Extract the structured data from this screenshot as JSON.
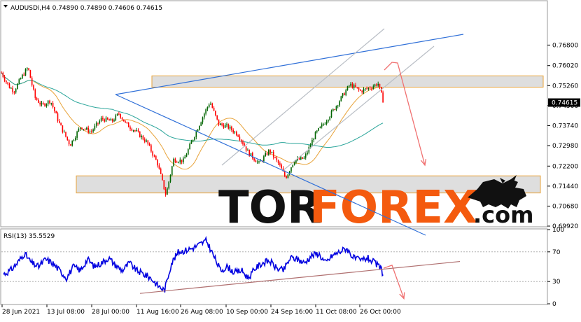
{
  "header": {
    "symbol_line": "AUDUSDi,H4  0.74890 0.74890 0.74606 0.74615"
  },
  "rsi_header": "RSI(13) 35.5529",
  "watermark": {
    "part1": "TOR",
    "part2": "FOREX",
    "part3": ".com",
    "icon": "bull-icon"
  },
  "colors": {
    "bull": "#006400",
    "bear": "#ff0000",
    "ma_fast": "#e8a33a",
    "ma_slow": "#2aa59a",
    "trendline": "#3070d8",
    "channel": "#b9bec5",
    "rsi": "#0000e0",
    "rsi_trend": "#b07070",
    "arrow": "#f07070",
    "zone": "#d8d8d8",
    "zone_border": "#e8a33a",
    "brand_dark": "#111111",
    "brand_orange": "#f45a0e"
  },
  "chart_data": [
    {
      "type": "candlestick",
      "title": "AUDUSDi,H4",
      "ylim": [
        0.6992,
        0.7846
      ],
      "y_ticks": [
        "0.76800",
        "0.76020",
        "0.75260",
        "0.74500",
        "0.73740",
        "0.72980",
        "0.72200",
        "0.71440",
        "0.70680",
        "0.69920"
      ],
      "current_price": "0.74615",
      "x_ticks": [
        "28 Jun 2021",
        "13 Jul 08:00",
        "28 Jul 00:00",
        "11 Aug 16:00",
        "26 Aug 08:00",
        "10 Sep 00:00",
        "24 Sep 16:00",
        "11 Oct 08:00",
        "26 Oct 00:00"
      ],
      "price_path": [
        [
          0,
          0.7585
        ],
        [
          12,
          0.7525
        ],
        [
          20,
          0.7505
        ],
        [
          30,
          0.7555
        ],
        [
          40,
          0.7595
        ],
        [
          50,
          0.748
        ],
        [
          60,
          0.745
        ],
        [
          72,
          0.747
        ],
        [
          85,
          0.738
        ],
        [
          100,
          0.73
        ],
        [
          115,
          0.737
        ],
        [
          130,
          0.735
        ],
        [
          145,
          0.74
        ],
        [
          160,
          0.739
        ],
        [
          170,
          0.742
        ],
        [
          180,
          0.738
        ],
        [
          195,
          0.735
        ],
        [
          210,
          0.731
        ],
        [
          225,
          0.723
        ],
        [
          237,
          0.711
        ],
        [
          248,
          0.7245
        ],
        [
          262,
          0.724
        ],
        [
          275,
          0.732
        ],
        [
          290,
          0.741
        ],
        [
          300,
          0.7465
        ],
        [
          312,
          0.738
        ],
        [
          325,
          0.737
        ],
        [
          340,
          0.734
        ],
        [
          355,
          0.727
        ],
        [
          370,
          0.723
        ],
        [
          385,
          0.728
        ],
        [
          400,
          0.722
        ],
        [
          408,
          0.7175
        ],
        [
          420,
          0.724
        ],
        [
          435,
          0.725
        ],
        [
          450,
          0.734
        ],
        [
          465,
          0.739
        ],
        [
          478,
          0.744
        ],
        [
          490,
          0.749
        ],
        [
          500,
          0.753
        ],
        [
          515,
          0.7505
        ],
        [
          530,
          0.752
        ],
        [
          540,
          0.7535
        ],
        [
          548,
          0.7462
        ]
      ],
      "zones": [
        {
          "from": 0.7563,
          "to": 0.752
        },
        {
          "from": 0.7183,
          "to": 0.7118
        }
      ]
    },
    {
      "type": "line",
      "title": "RSI(13)",
      "ylim": [
        0,
        100
      ],
      "y_ticks": [
        "100",
        "70",
        "30",
        "0"
      ],
      "last_value": 35.5529,
      "rsi_path": [
        [
          5,
          40
        ],
        [
          15,
          45
        ],
        [
          25,
          55
        ],
        [
          35,
          68
        ],
        [
          45,
          55
        ],
        [
          55,
          50
        ],
        [
          65,
          60
        ],
        [
          75,
          55
        ],
        [
          85,
          45
        ],
        [
          95,
          35
        ],
        [
          105,
          50
        ],
        [
          115,
          45
        ],
        [
          125,
          60
        ],
        [
          135,
          50
        ],
        [
          145,
          55
        ],
        [
          155,
          62
        ],
        [
          165,
          52
        ],
        [
          175,
          45
        ],
        [
          185,
          55
        ],
        [
          195,
          45
        ],
        [
          205,
          40
        ],
        [
          215,
          35
        ],
        [
          225,
          25
        ],
        [
          235,
          18
        ],
        [
          245,
          55
        ],
        [
          255,
          70
        ],
        [
          265,
          72
        ],
        [
          275,
          75
        ],
        [
          285,
          80
        ],
        [
          295,
          85
        ],
        [
          305,
          65
        ],
        [
          315,
          45
        ],
        [
          325,
          50
        ],
        [
          335,
          42
        ],
        [
          345,
          45
        ],
        [
          355,
          35
        ],
        [
          365,
          48
        ],
        [
          375,
          55
        ],
        [
          385,
          58
        ],
        [
          395,
          48
        ],
        [
          405,
          45
        ],
        [
          415,
          62
        ],
        [
          425,
          60
        ],
        [
          435,
          55
        ],
        [
          445,
          65
        ],
        [
          455,
          68
        ],
        [
          465,
          55
        ],
        [
          475,
          65
        ],
        [
          485,
          70
        ],
        [
          495,
          75
        ],
        [
          505,
          62
        ],
        [
          515,
          58
        ],
        [
          525,
          62
        ],
        [
          535,
          55
        ],
        [
          545,
          47
        ],
        [
          548,
          36
        ]
      ]
    }
  ]
}
